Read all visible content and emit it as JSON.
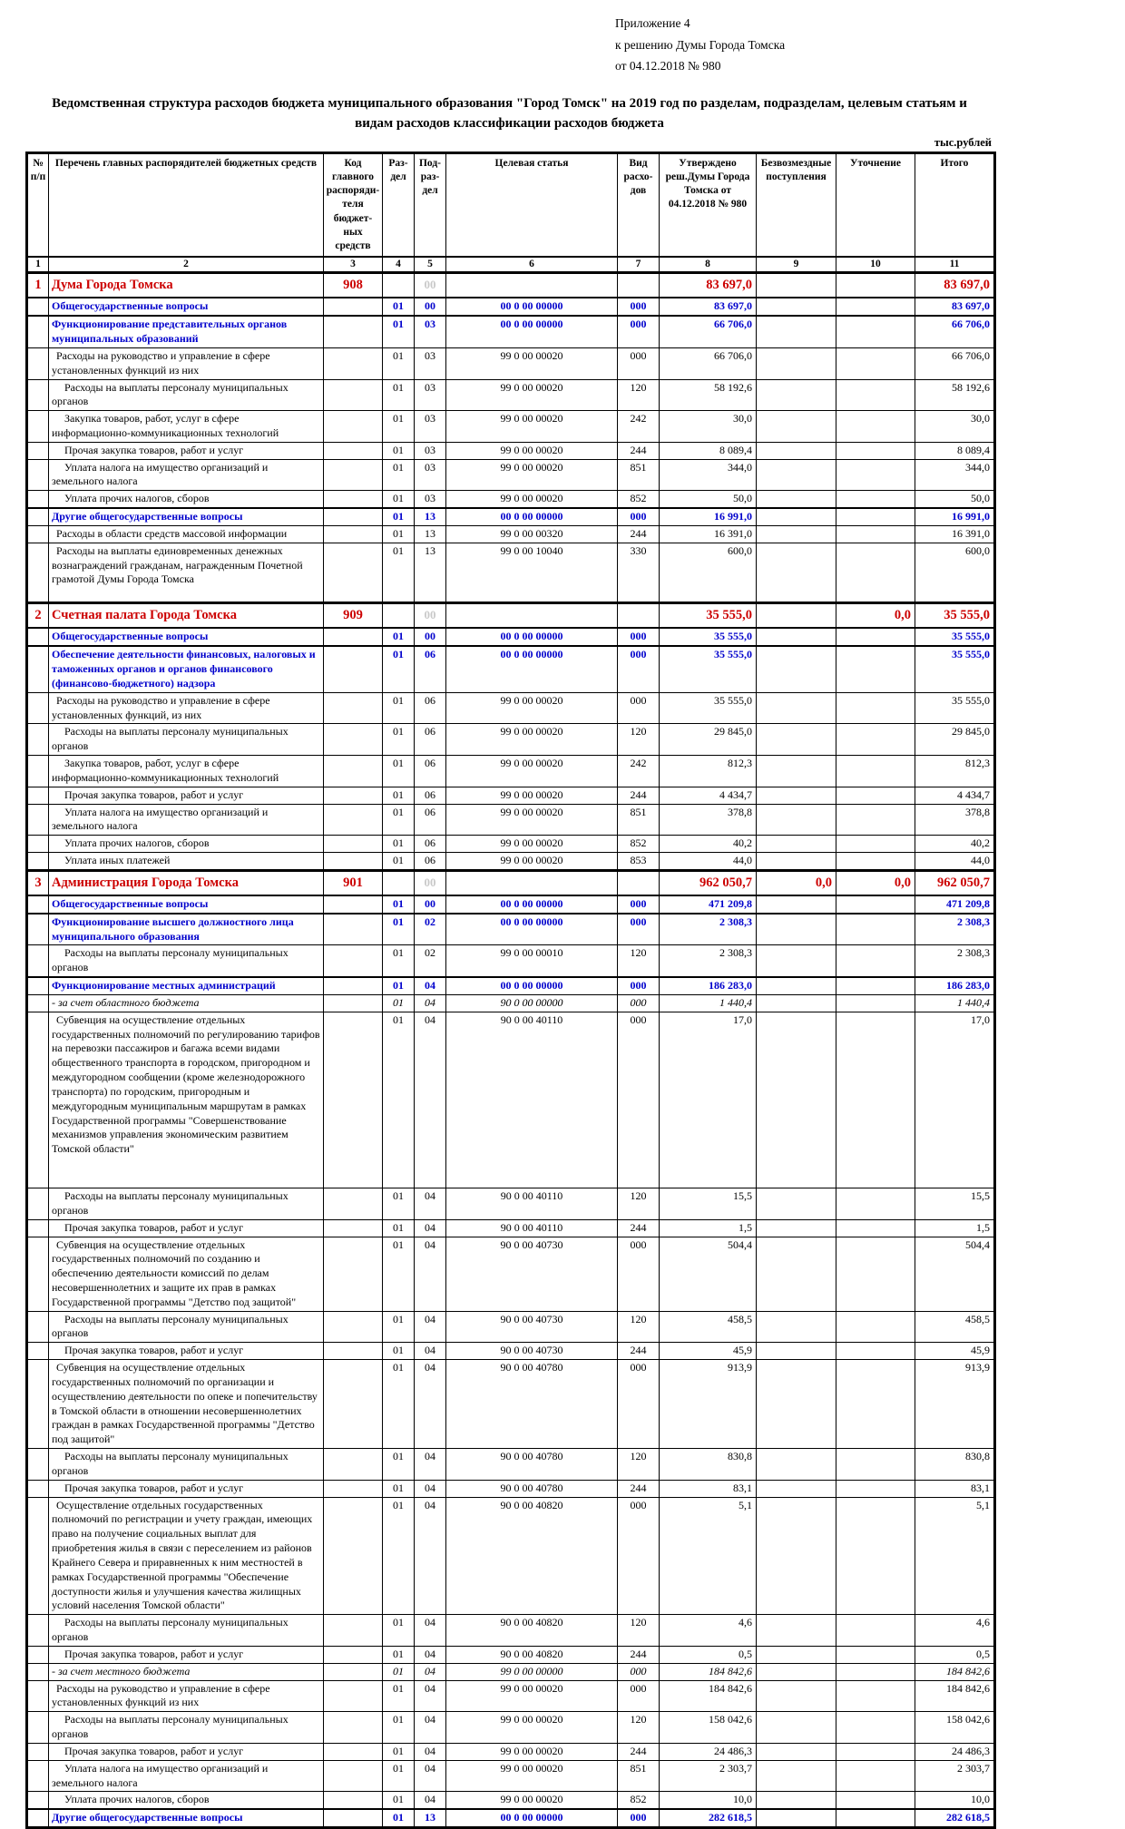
{
  "page": {
    "appendix": [
      "Приложение 4",
      "к решению Думы Города Томска",
      "от 04.12.2018 № 980"
    ],
    "title": "Ведомственная структура расходов бюджета муниципального образования \"Город Томск\" на 2019 год по разделам, подразделам, целевым статьям и видам расходов классификации расходов бюджета",
    "units": "тыс.рублей"
  },
  "table": {
    "columns": [
      {
        "num": "1",
        "label": "№ п/п"
      },
      {
        "num": "2",
        "label": "Перечень главных распорядителей бюджетных средств"
      },
      {
        "num": "3",
        "label": "Код главного распоряди-теля бюджет-ных средств"
      },
      {
        "num": "4",
        "label": "Раз-дел"
      },
      {
        "num": "5",
        "label": "Под-раз-дел"
      },
      {
        "num": "6",
        "label": "Целевая статья"
      },
      {
        "num": "7",
        "label": "Вид расхо-дов"
      },
      {
        "num": "8",
        "label": "Утверждено реш.Думы Города Томска от 04.12.2018 № 980"
      },
      {
        "num": "9",
        "label": "Безвозмездные поступления"
      },
      {
        "num": "10",
        "label": "Уточнение"
      },
      {
        "num": "11",
        "label": "Итого"
      }
    ],
    "rows": [
      {
        "st": "main",
        "n": "1",
        "name": "Дума Города Томска",
        "code": "908",
        "pr": "00",
        "c8": "83 697,0",
        "c11": "83 697,0"
      },
      {
        "st": "sec",
        "name": "Общегосударственные вопросы",
        "rz": "01",
        "pr": "00",
        "cs": "00 0 00 00000",
        "vr": "000",
        "c8": "83 697,0",
        "c11": "83 697,0"
      },
      {
        "st": "sec",
        "name": "Функционирование представительных органов муниципальных образований",
        "rz": "01",
        "pr": "03",
        "cs": "00 0 00 00000",
        "vr": "000",
        "c8": "66 706,0",
        "c11": "66 706,0"
      },
      {
        "st": "norm",
        "ind": 1,
        "name": "Расходы на руководство и управление в сфере установленных функций из них",
        "rz": "01",
        "pr": "03",
        "cs": "99 0 00 00020",
        "vr": "000",
        "c8": "66 706,0",
        "c11": "66 706,0"
      },
      {
        "st": "norm",
        "ind": 2,
        "name": "Расходы на выплаты персоналу муниципальных органов",
        "rz": "01",
        "pr": "03",
        "cs": "99 0 00 00020",
        "vr": "120",
        "c8": "58 192,6",
        "c11": "58 192,6"
      },
      {
        "st": "norm",
        "ind": 2,
        "name": "Закупка товаров, работ, услуг в сфере информационно-коммуникационных технологий",
        "rz": "01",
        "pr": "03",
        "cs": "99 0 00 00020",
        "vr": "242",
        "c8": "30,0",
        "c11": "30,0"
      },
      {
        "st": "norm",
        "ind": 2,
        "name": "Прочая закупка товаров, работ и услуг",
        "rz": "01",
        "pr": "03",
        "cs": "99 0 00 00020",
        "vr": "244",
        "c8": "8 089,4",
        "c11": "8 089,4"
      },
      {
        "st": "norm",
        "ind": 2,
        "name": "Уплата налога на имущество организаций и земельного налога",
        "rz": "01",
        "pr": "03",
        "cs": "99 0 00 00020",
        "vr": "851",
        "c8": "344,0",
        "c11": "344,0"
      },
      {
        "st": "norm",
        "ind": 2,
        "name": "Уплата прочих налогов, сборов",
        "rz": "01",
        "pr": "03",
        "cs": "99 0 00 00020",
        "vr": "852",
        "c8": "50,0",
        "c11": "50,0"
      },
      {
        "st": "sec",
        "name": "Другие общегосударственные вопросы",
        "rz": "01",
        "pr": "13",
        "cs": "00 0 00 00000",
        "vr": "000",
        "c8": "16 991,0",
        "c11": "16 991,0"
      },
      {
        "st": "norm",
        "ind": 1,
        "name": "Расходы в области средств массовой информации",
        "rz": "01",
        "pr": "13",
        "cs": "99 0 00 00320",
        "vr": "244",
        "c8": "16 391,0",
        "c11": "16 391,0"
      },
      {
        "st": "norm",
        "ind": 1,
        "pb": 16,
        "name": "Расходы на выплаты единовременных денежных вознаграждений гражданам, награжденным Почетной грамотой Думы Города Томска",
        "rz": "01",
        "pr": "13",
        "cs": "99 0 00 10040",
        "vr": "330",
        "c8": "600,0",
        "c11": "600,0"
      },
      {
        "st": "main",
        "n": "2",
        "name": "Счетная палата Города Томска",
        "code": "909",
        "pr": "00",
        "c8": "35 555,0",
        "c10": "0,0",
        "c11": "35 555,0"
      },
      {
        "st": "sec",
        "name": "Общегосударственные вопросы",
        "rz": "01",
        "pr": "00",
        "cs": "00 0 00 00000",
        "vr": "000",
        "c8": "35 555,0",
        "c11": "35 555,0"
      },
      {
        "st": "sec",
        "name": "Обеспечение деятельности финансовых, налоговых и таможенных органов и органов финансового (финансово-бюджетного) надзора",
        "rz": "01",
        "pr": "06",
        "cs": "00 0 00 00000",
        "vr": "000",
        "c8": "35 555,0",
        "c11": "35 555,0"
      },
      {
        "st": "norm",
        "ind": 1,
        "name": "Расходы на руководство и управление в сфере установленных функций, из них",
        "rz": "01",
        "pr": "06",
        "cs": "99 0 00 00020",
        "vr": "000",
        "c8": "35 555,0",
        "c11": "35 555,0"
      },
      {
        "st": "norm",
        "ind": 2,
        "name": "Расходы на выплаты персоналу муниципальных органов",
        "rz": "01",
        "pr": "06",
        "cs": "99 0 00 00020",
        "vr": "120",
        "c8": "29 845,0",
        "c11": "29 845,0"
      },
      {
        "st": "norm",
        "ind": 2,
        "name": "Закупка товаров, работ, услуг в сфере информационно-коммуникационных технологий",
        "rz": "01",
        "pr": "06",
        "cs": "99 0 00 00020",
        "vr": "242",
        "c8": "812,3",
        "c11": "812,3"
      },
      {
        "st": "norm",
        "ind": 2,
        "name": "Прочая закупка товаров, работ и услуг",
        "rz": "01",
        "pr": "06",
        "cs": "99 0 00 00020",
        "vr": "244",
        "c8": "4 434,7",
        "c11": "4 434,7"
      },
      {
        "st": "norm",
        "ind": 2,
        "name": "Уплата налога на имущество организаций и земельного налога",
        "rz": "01",
        "pr": "06",
        "cs": "99 0 00 00020",
        "vr": "851",
        "c8": "378,8",
        "c11": "378,8"
      },
      {
        "st": "norm",
        "ind": 2,
        "name": "Уплата прочих налогов, сборов",
        "rz": "01",
        "pr": "06",
        "cs": "99 0 00 00020",
        "vr": "852",
        "c8": "40,2",
        "c11": "40,2"
      },
      {
        "st": "norm",
        "ind": 2,
        "name": "Уплата иных платежей",
        "rz": "01",
        "pr": "06",
        "cs": "99 0 00 00020",
        "vr": "853",
        "c8": "44,0",
        "c11": "44,0"
      },
      {
        "st": "main",
        "n": "3",
        "name": "Администрация Города Томска",
        "code": "901",
        "pr": "00",
        "c8": "962 050,7",
        "c9": "0,0",
        "c10": "0,0",
        "c11": "962 050,7"
      },
      {
        "st": "sec",
        "name": "Общегосударственные вопросы",
        "rz": "01",
        "pr": "00",
        "cs": "00 0 00 00000",
        "vr": "000",
        "c8": "471 209,8",
        "c11": "471 209,8"
      },
      {
        "st": "sec",
        "name": "Функционирование высшего должностного лица муниципального образования",
        "rz": "01",
        "pr": "02",
        "cs": "00 0 00 00000",
        "vr": "000",
        "c8": "2 308,3",
        "c11": "2 308,3"
      },
      {
        "st": "norm",
        "ind": 2,
        "name": "Расходы на выплаты персоналу муниципальных органов",
        "rz": "01",
        "pr": "02",
        "cs": "99 0 00 00010",
        "vr": "120",
        "c8": "2 308,3",
        "c11": "2 308,3"
      },
      {
        "st": "sec",
        "name": "Функционирование местных администраций",
        "rz": "01",
        "pr": "04",
        "cs": "00 0 00 00000",
        "vr": "000",
        "c8": "186 283,0",
        "c11": "186 283,0"
      },
      {
        "st": "ital",
        "name": "- за счет областного бюджета",
        "rz": "01",
        "pr": "04",
        "cs": "90 0 00 00000",
        "vr": "000",
        "c8": "1 440,4",
        "c11": "1 440,4"
      },
      {
        "st": "norm",
        "ind": 1,
        "pb": 34,
        "name": "Субвенция на осуществление отдельных государственных полномочий по регулированию тарифов на перевозки пассажиров и багажа всеми видами общественного транспорта в городском, пригородном и междугородном сообщении (кроме железнодорожного транспорта) по городским, пригородным и междугородным муниципальным маршрутам в рамках Государственной программы \"Совершенствование механизмов управления экономическим развитием Томской области\"",
        "rz": "01",
        "pr": "04",
        "cs": "90 0 00 40110",
        "vr": "000",
        "c8": "17,0",
        "c11": "17,0"
      },
      {
        "st": "norm",
        "ind": 2,
        "name": "Расходы на выплаты персоналу муниципальных органов",
        "rz": "01",
        "pr": "04",
        "cs": "90 0 00 40110",
        "vr": "120",
        "c8": "15,5",
        "c11": "15,5"
      },
      {
        "st": "norm",
        "ind": 2,
        "name": "Прочая закупка товаров, работ и услуг",
        "rz": "01",
        "pr": "04",
        "cs": "90 0 00 40110",
        "vr": "244",
        "c8": "1,5",
        "c11": "1,5"
      },
      {
        "st": "norm",
        "ind": 1,
        "name": "Субвенция на осуществление отдельных государственных полномочий по созданию и обеспечению деятельности комиссий по делам несовершеннолетних и защите их прав в рамках Государственной программы \"Детство под защитой\"",
        "rz": "01",
        "pr": "04",
        "cs": "90 0 00 40730",
        "vr": "000",
        "c8": "504,4",
        "c11": "504,4"
      },
      {
        "st": "norm",
        "ind": 2,
        "name": "Расходы на выплаты персоналу муниципальных органов",
        "rz": "01",
        "pr": "04",
        "cs": "90 0 00 40730",
        "vr": "120",
        "c8": "458,5",
        "c11": "458,5"
      },
      {
        "st": "norm",
        "ind": 2,
        "name": "Прочая закупка товаров, работ и услуг",
        "rz": "01",
        "pr": "04",
        "cs": "90 0 00 40730",
        "vr": "244",
        "c8": "45,9",
        "c11": "45,9"
      },
      {
        "st": "norm",
        "ind": 1,
        "name": "Субвенция на осуществление отдельных государственных полномочий по организации и осуществлению деятельности по опеке и попечительству в Томской области в отношении несовершеннолетних граждан в рамках Государственной программы \"Детство под защитой\"",
        "rz": "01",
        "pr": "04",
        "cs": "90 0 00 40780",
        "vr": "000",
        "c8": "913,9",
        "c11": "913,9"
      },
      {
        "st": "norm",
        "ind": 2,
        "name": "Расходы на выплаты персоналу муниципальных органов",
        "rz": "01",
        "pr": "04",
        "cs": "90 0 00 40780",
        "vr": "120",
        "c8": "830,8",
        "c11": "830,8"
      },
      {
        "st": "norm",
        "ind": 2,
        "name": "Прочая закупка товаров, работ и услуг",
        "rz": "01",
        "pr": "04",
        "cs": "90 0 00 40780",
        "vr": "244",
        "c8": "83,1",
        "c11": "83,1"
      },
      {
        "st": "norm",
        "ind": 1,
        "name": "Осуществление отдельных государственных полномочий по регистрации и учету граждан, имеющих право на получение социальных выплат для приобретения жилья в связи с переселением из районов Крайнего Севера и приравненных к ним местностей в рамках Государственной программы \"Обеспечение доступности жилья и улучшения качества жилищных условий населения Томской области\"",
        "rz": "01",
        "pr": "04",
        "cs": "90 0 00 40820",
        "vr": "000",
        "c8": "5,1",
        "c11": "5,1"
      },
      {
        "st": "norm",
        "ind": 2,
        "name": "Расходы на выплаты персоналу муниципальных органов",
        "rz": "01",
        "pr": "04",
        "cs": "90 0 00 40820",
        "vr": "120",
        "c8": "4,6",
        "c11": "4,6"
      },
      {
        "st": "norm",
        "ind": 2,
        "name": "Прочая закупка товаров, работ и услуг",
        "rz": "01",
        "pr": "04",
        "cs": "90 0 00 40820",
        "vr": "244",
        "c8": "0,5",
        "c11": "0,5"
      },
      {
        "st": "ital",
        "name": "- за счет местного бюджета",
        "rz": "01",
        "pr": "04",
        "cs": "99 0 00 00000",
        "vr": "000",
        "c8": "184 842,6",
        "c11": "184 842,6"
      },
      {
        "st": "norm",
        "ind": 1,
        "name": "Расходы на руководство и управление в сфере установленных функций из них",
        "rz": "01",
        "pr": "04",
        "cs": "99 0 00 00020",
        "vr": "000",
        "c8": "184 842,6",
        "c11": "184 842,6"
      },
      {
        "st": "norm",
        "ind": 2,
        "name": "Расходы на выплаты персоналу муниципальных органов",
        "rz": "01",
        "pr": "04",
        "cs": "99 0 00 00020",
        "vr": "120",
        "c8": "158 042,6",
        "c11": "158 042,6"
      },
      {
        "st": "norm",
        "ind": 2,
        "name": "Прочая закупка товаров, работ и услуг",
        "rz": "01",
        "pr": "04",
        "cs": "99 0 00 00020",
        "vr": "244",
        "c8": "24 486,3",
        "c11": "24 486,3"
      },
      {
        "st": "norm",
        "ind": 2,
        "name": "Уплата налога на имущество организаций и земельного налога",
        "rz": "01",
        "pr": "04",
        "cs": "99 0 00 00020",
        "vr": "851",
        "c8": "2 303,7",
        "c11": "2 303,7"
      },
      {
        "st": "norm",
        "ind": 2,
        "name": "Уплата прочих налогов, сборов",
        "rz": "01",
        "pr": "04",
        "cs": "99 0 00 00020",
        "vr": "852",
        "c8": "10,0",
        "c11": "10,0"
      },
      {
        "st": "sec",
        "name": "Другие общегосударственные вопросы",
        "rz": "01",
        "pr": "13",
        "cs": "00 0 00 00000",
        "vr": "000",
        "c8": "282 618,5",
        "c11": "282 618,5"
      }
    ]
  }
}
